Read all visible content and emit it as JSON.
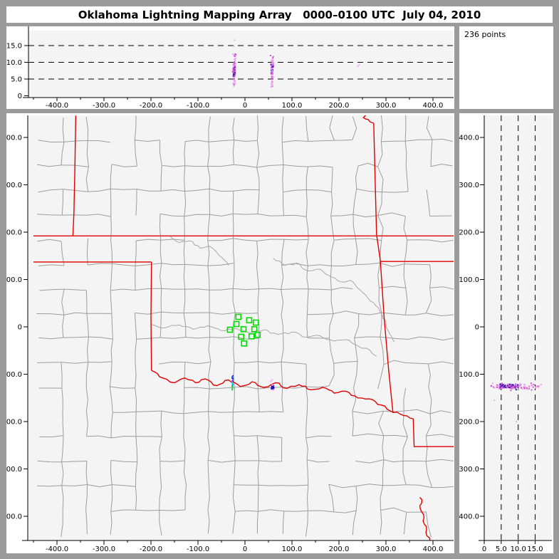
{
  "window": {
    "title": "Oklahoma Lightning Mapping Array   0000–0100 UTC  July 04, 2010"
  },
  "points_box": {
    "label": "236 points"
  },
  "colors": {
    "frame_gray": "#9b9b9b",
    "panel_white": "#ffffff",
    "plot_bg": "#f4f4f4",
    "axis_black": "#000000",
    "county_gray": "#9d9d9d",
    "river_gray": "#a8a8a8",
    "border_red": "#e00000",
    "station_green": "#00dd00",
    "pt_light": "#eeaaee",
    "pt_orchid": "#cc55cc",
    "pt_purple": "#7722cc",
    "pt_dark": "#2211bb",
    "pt_blue": "#2244ee",
    "pt_cyan": "#00bbee",
    "pt_green": "#22cc55"
  },
  "chart_data": [
    {
      "id": "ew_altitude_projection",
      "type": "scatter",
      "position": "top",
      "xlabel": "",
      "ylabel": "",
      "xlim": [
        -460,
        445
      ],
      "ylim": [
        0,
        19
      ],
      "x_tick_values": [
        -400,
        -300,
        -200,
        -100,
        0,
        100,
        200,
        300,
        400
      ],
      "x_tick_labels": [
        "-400.0",
        "-300.0",
        "-200.0",
        "-100.0",
        "0",
        "100.0",
        "200.0",
        "300.0",
        "400.0"
      ],
      "x_minor_step": 50,
      "y_tick_values": [
        0,
        5,
        10,
        15
      ],
      "y_tick_labels": [
        "0",
        "5.0",
        "10.0",
        "15.0"
      ],
      "dashed_hlines": [
        5,
        10,
        15
      ],
      "clusters": [
        {
          "cx": -23,
          "x_spread": 2.4,
          "alt_range": [
            2.0,
            12.6
          ],
          "alt_dense": [
            5.5,
            8.5
          ],
          "n": 78
        },
        {
          "cx": 58,
          "x_spread": 2.6,
          "alt_range": [
            2.2,
            12.5
          ],
          "alt_dense": [
            6.5,
            9.5
          ],
          "n": 72
        }
      ],
      "outlier_points": [
        {
          "x": -24,
          "alt": 14.8,
          "color": "pt_light"
        },
        {
          "x": -22,
          "alt": 16.6,
          "color": "pt_light"
        },
        {
          "x": 240,
          "alt": 8.8,
          "color": "pt_light"
        },
        {
          "x": 243,
          "alt": 9.3,
          "color": "pt_light"
        }
      ]
    },
    {
      "id": "plan_view_map",
      "type": "scatter",
      "position": "main",
      "xlabel": "",
      "ylabel": "",
      "xlim": [
        -462,
        444
      ],
      "ylim": [
        -451,
        446
      ],
      "x_tick_values": [
        -400,
        -300,
        -200,
        -100,
        0,
        100,
        200,
        300,
        400
      ],
      "x_tick_labels": [
        "-400.0",
        "-300.0",
        "-200.0",
        "-100.0",
        "0",
        "100.0",
        "200.0",
        "300.0",
        "400.0"
      ],
      "x_minor_step": 50,
      "y_tick_values": [
        400,
        300,
        200,
        100,
        0,
        -100,
        -200,
        -300,
        -400
      ],
      "y_tick_labels": [
        "400.0",
        "300.0",
        "200.0",
        "100.0",
        "0",
        "-100.0",
        "-200.0",
        "-300.0",
        "-400.0"
      ],
      "stations_km": [
        [
          -14,
          21
        ],
        [
          9,
          14
        ],
        [
          23,
          9
        ],
        [
          -18,
          6
        ],
        [
          -32,
          -6
        ],
        [
          -3,
          -5
        ],
        [
          20,
          -5
        ],
        [
          27,
          -17
        ],
        [
          -8,
          -21
        ],
        [
          14,
          -20
        ],
        [
          -2,
          -35
        ]
      ],
      "flash_clusters": [
        {
          "cx": -26,
          "cy": -118,
          "x_spread": 1.3,
          "y_extent": 30,
          "n": 20,
          "palette": "time_rainbow"
        },
        {
          "cx": 59,
          "cy": -128,
          "x_spread": 3.0,
          "y_spread": 6,
          "n": 36,
          "palette": "core_blue"
        }
      ],
      "state_borders_km": [
        {
          "name": "kansas-oklahoma-37N",
          "wiggly": false,
          "pts": [
            [
              -450,
              192
            ],
            [
              450,
              192
            ]
          ]
        },
        {
          "name": "colorado-kansas",
          "wiggly": false,
          "pts": [
            [
              -360,
              446
            ],
            [
              -362,
              330
            ],
            [
              -364,
              240
            ],
            [
              -366,
              192
            ]
          ]
        },
        {
          "name": "texas-panhandle-north",
          "wiggly": false,
          "pts": [
            [
              -450,
              137
            ],
            [
              -199,
              137
            ]
          ]
        },
        {
          "name": "texas-oklahoma-west",
          "wiggly": false,
          "pts": [
            [
              -199,
              137
            ],
            [
              -200,
              20
            ],
            [
              -199,
              -92
            ]
          ]
        },
        {
          "name": "red-river",
          "wiggly": true,
          "pts": [
            [
              -199,
              -92
            ],
            [
              -175,
              -108
            ],
            [
              -150,
              -118
            ],
            [
              -128,
              -108
            ],
            [
              -105,
              -118
            ],
            [
              -85,
              -110
            ],
            [
              -60,
              -124
            ],
            [
              -35,
              -112
            ],
            [
              -10,
              -126
            ],
            [
              15,
              -116
            ],
            [
              40,
              -128
            ],
            [
              65,
              -118
            ],
            [
              90,
              -130
            ],
            [
              115,
              -122
            ],
            [
              140,
              -133
            ],
            [
              165,
              -128
            ],
            [
              190,
              -140
            ],
            [
              215,
              -136
            ],
            [
              240,
              -150
            ],
            [
              265,
              -152
            ],
            [
              290,
              -165
            ],
            [
              310,
              -178
            ],
            [
              330,
              -184
            ],
            [
              345,
              -188
            ],
            [
              358,
              -194
            ]
          ]
        },
        {
          "name": "missouri-river-kc",
          "wiggly": true,
          "pts": [
            [
              248,
              452
            ],
            [
              256,
              446
            ],
            [
              252,
              442
            ],
            [
              262,
              438
            ],
            [
              266,
              433
            ],
            [
              274,
              430
            ]
          ]
        },
        {
          "name": "kansas-missouri-arkansas-east",
          "wiggly": false,
          "pts": [
            [
              274,
              430
            ],
            [
              277,
              310
            ],
            [
              280,
              195
            ],
            [
              288,
              140
            ],
            [
              296,
              20
            ],
            [
              306,
              -95
            ],
            [
              315,
              -182
            ]
          ]
        },
        {
          "name": "arkansas-missouri-36.5N",
          "wiggly": false,
          "pts": [
            [
              288,
              138
            ],
            [
              450,
              138
            ]
          ]
        },
        {
          "name": "se-corner-jog",
          "wiggly": false,
          "pts": [
            [
              358,
              -194
            ],
            [
              360,
              -253
            ],
            [
              452,
              -253
            ]
          ]
        },
        {
          "name": "texas-arkansas-south",
          "wiggly": true,
          "pts": [
            [
              372,
              -360
            ],
            [
              376,
              -372
            ],
            [
              373,
              -384
            ],
            [
              380,
              -396
            ],
            [
              379,
              -410
            ],
            [
              386,
              -422
            ],
            [
              385,
              -434
            ],
            [
              393,
              -446
            ],
            [
              398,
              -454
            ]
          ]
        }
      ],
      "rivers_km": [
        {
          "name": "arkansas-river",
          "pts": [
            [
              60,
              145
            ],
            [
              85,
              130
            ],
            [
              110,
              135
            ],
            [
              135,
              118
            ],
            [
              160,
              122
            ],
            [
              185,
              105
            ],
            [
              205,
              95
            ],
            [
              225,
              98
            ],
            [
              245,
              78
            ],
            [
              262,
              60
            ],
            [
              278,
              45
            ],
            [
              292,
              25
            ],
            [
              300,
              5
            ],
            [
              308,
              -15
            ],
            [
              318,
              -32
            ]
          ]
        },
        {
          "name": "cimarron-river",
          "pts": [
            [
              -160,
              192
            ],
            [
              -140,
              178
            ],
            [
              -118,
              182
            ],
            [
              -95,
              166
            ],
            [
              -75,
              170
            ],
            [
              -58,
              155
            ],
            [
              -45,
              142
            ],
            [
              -35,
              130
            ]
          ]
        },
        {
          "name": "canadian-river",
          "pts": [
            [
              -199,
              5
            ],
            [
              -170,
              -2
            ],
            [
              -140,
              4
            ],
            [
              -110,
              -5
            ],
            [
              -80,
              2
            ],
            [
              -50,
              -8
            ],
            [
              -20,
              -3
            ],
            [
              10,
              -12
            ],
            [
              40,
              -6
            ],
            [
              70,
              -16
            ],
            [
              100,
              -11
            ],
            [
              130,
              -22
            ],
            [
              160,
              -19
            ],
            [
              190,
              -30
            ],
            [
              215,
              -27
            ],
            [
              240,
              -40
            ],
            [
              258,
              -45
            ],
            [
              270,
              -55
            ],
            [
              280,
              -62
            ]
          ]
        }
      ],
      "county_grid": {
        "x0": -440,
        "y0": -440,
        "step": 52,
        "cols": 17,
        "rows": 17,
        "seed": 42,
        "skip_prob": 0.2,
        "skip_prob_texas": 0.32
      }
    },
    {
      "id": "ns_altitude_projection",
      "type": "scatter",
      "position": "right",
      "xlabel": "",
      "ylabel": "",
      "xlim": [
        0,
        19.9
      ],
      "ylim": [
        -451,
        446
      ],
      "x_tick_values": [
        0,
        5,
        10,
        15
      ],
      "x_tick_labels": [
        "0",
        "5.0",
        "10.0",
        "15.0"
      ],
      "dashed_vlines": [
        5,
        10,
        15
      ],
      "y_tick_values": [
        400,
        300,
        200,
        100,
        0,
        -100,
        -200,
        -300,
        -400
      ],
      "y_tick_labels": [
        "400.0",
        "300.0",
        "200.0",
        "100.0",
        "0",
        "-100.0",
        "-200.0",
        "-300.0",
        "-400.0"
      ],
      "band": {
        "cy": -126,
        "y_spread": 4.5,
        "alt_range": [
          2.0,
          16.5
        ],
        "alt_dense": [
          4.5,
          10.0
        ],
        "n": 140
      },
      "outlier_points": [
        {
          "alt": 3.0,
          "y": -155,
          "color": "pt_light"
        },
        {
          "alt": 9.5,
          "y": -200,
          "color": "pt_light"
        },
        {
          "alt": 16.8,
          "y": -122,
          "color": "pt_light"
        }
      ]
    }
  ]
}
